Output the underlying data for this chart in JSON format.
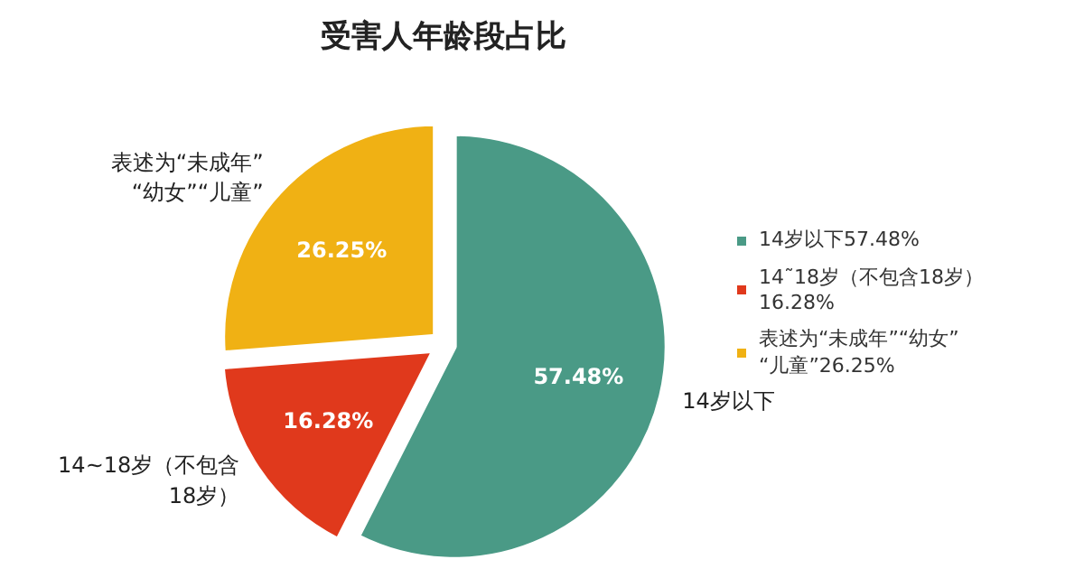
{
  "chart_data": {
    "type": "pie",
    "title": "受害人年龄段占比",
    "categories": [
      "14岁以下57.48%",
      "14˜18岁（不包含18岁）16.28%",
      "表述为“未成年”“幼女”“儿童”26.25%"
    ],
    "annotations": [
      "14岁以下",
      "14~18岁（不包含18岁）",
      "表述为“未成年”“幼女”“儿童”"
    ],
    "values": [
      57.48,
      16.28,
      26.25
    ],
    "value_labels": [
      "57.48%",
      "16.28%",
      "26.25%"
    ],
    "colors": [
      "#4a9a86",
      "#e0391c",
      "#f0b114"
    ],
    "legend": "right"
  }
}
